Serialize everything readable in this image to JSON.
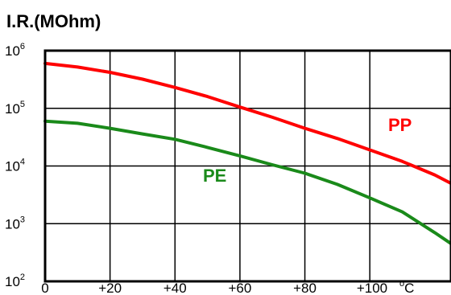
{
  "chart_data": {
    "type": "line",
    "title": "",
    "ylabel": "I.R.(MOhm)",
    "xlabel": "",
    "x_unit": "C",
    "x_unit_prefix": "o",
    "y_scale": "log",
    "xlim": [
      0,
      125
    ],
    "ylim": [
      100,
      1000000
    ],
    "x_ticks": [
      0,
      20,
      40,
      60,
      80,
      100
    ],
    "x_tick_labels": [
      "0",
      "+20",
      "+40",
      "+60",
      "+80",
      "+100"
    ],
    "y_ticks": [
      100,
      1000,
      10000,
      100000,
      1000000
    ],
    "y_tick_labels": [
      {
        "base": "10",
        "exp": "2"
      },
      {
        "base": "10",
        "exp": "3"
      },
      {
        "base": "10",
        "exp": "4"
      },
      {
        "base": "10",
        "exp": "5"
      },
      {
        "base": "10",
        "exp": "6"
      }
    ],
    "grid": true,
    "series": [
      {
        "name": "PP",
        "color": "#ff0000",
        "x": [
          0,
          10,
          20,
          30,
          40,
          50,
          60,
          70,
          80,
          90,
          100,
          110,
          120,
          125
        ],
        "y": [
          600000,
          520000,
          420000,
          320000,
          230000,
          160000,
          105000,
          70000,
          45000,
          30000,
          19000,
          12000,
          7000,
          5000
        ]
      },
      {
        "name": "PE",
        "color": "#1a8a1a",
        "x": [
          0,
          10,
          20,
          30,
          40,
          50,
          60,
          70,
          80,
          90,
          100,
          110,
          120,
          125
        ],
        "y": [
          60000,
          55000,
          45000,
          36000,
          29000,
          21000,
          15000,
          10500,
          7500,
          4800,
          2800,
          1600,
          700,
          450
        ]
      }
    ]
  }
}
